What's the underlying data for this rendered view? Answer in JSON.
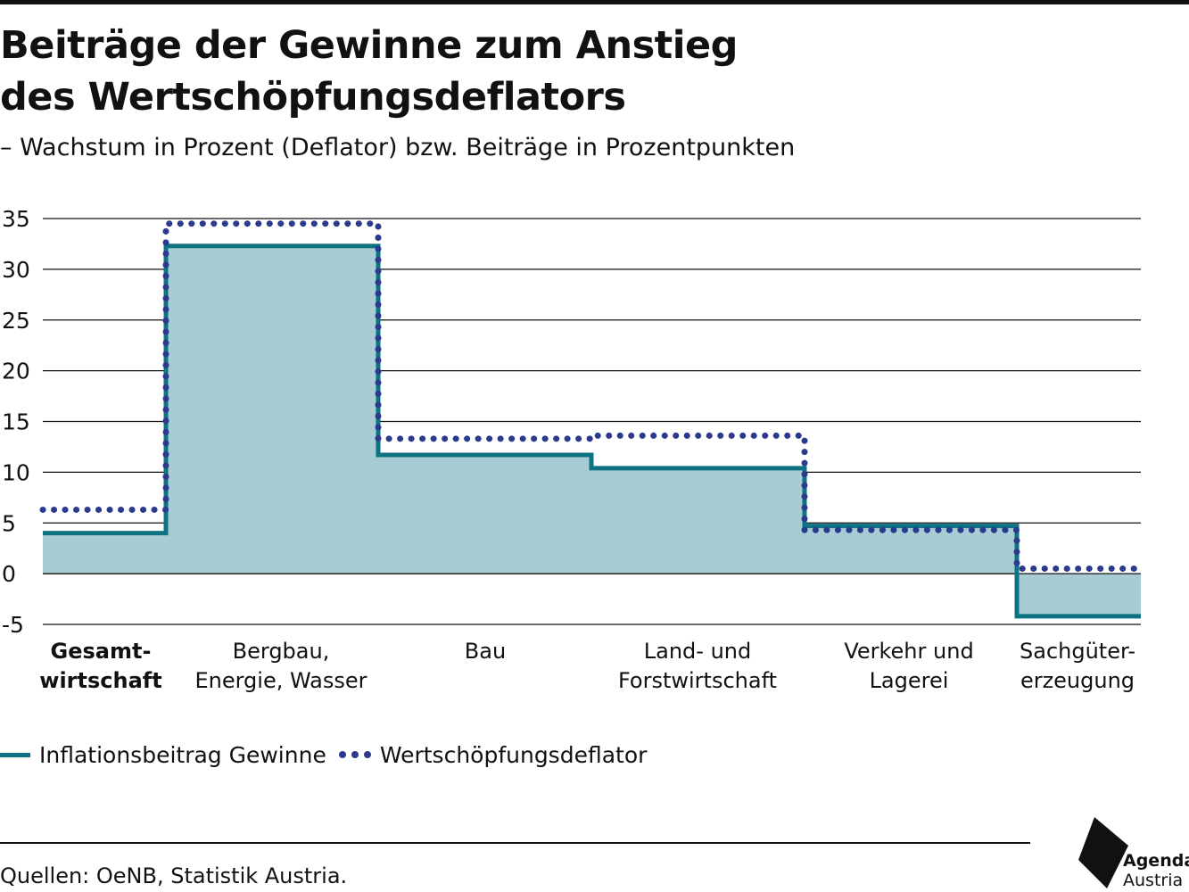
{
  "title": {
    "line1": "Beiträge der Gewinne zum Anstieg",
    "line2": "des Wertschöpfungsdeflators"
  },
  "subtitle": "– Wachstum in Prozent (Deflator) bzw. Beiträge in Prozentpunkten",
  "colors": {
    "profit_line": "#0d7382",
    "profit_fill": "#a8ccd4",
    "deflator": "#2b3a8c",
    "grid": "#111111"
  },
  "chart_data": {
    "type": "line",
    "step": true,
    "y_ticks": [
      "35",
      "30",
      "25",
      "20",
      "15",
      "10",
      "5",
      "0",
      "-5"
    ],
    "ylim": [
      -5,
      35
    ],
    "grid": true,
    "categories": [
      {
        "lines": [
          "Gesamt-",
          "wirtschaft"
        ],
        "bold": true
      },
      {
        "lines": [
          "Bergbau,",
          "Energie, Wasser"
        ],
        "bold": false
      },
      {
        "lines": [
          "Bau"
        ],
        "bold": false
      },
      {
        "lines": [
          "Land- und",
          "Forstwirtschaft"
        ],
        "bold": false
      },
      {
        "lines": [
          "Verkehr und",
          "Lagerei"
        ],
        "bold": false
      },
      {
        "lines": [
          "Sachgüter-",
          "erzeugung"
        ],
        "bold": false
      }
    ],
    "series": [
      {
        "name": "Inflationsbeitrag Gewinne",
        "style": "solid-area",
        "values": [
          4.0,
          32.3,
          11.7,
          10.4,
          4.7,
          -4.2
        ]
      },
      {
        "name": "Wertschöpfungsdeflator",
        "style": "dotted",
        "values": [
          6.3,
          34.5,
          13.3,
          13.6,
          4.3,
          0.5
        ]
      }
    ],
    "legend_position": "bottom-left"
  },
  "source": "Quellen: OeNB, Statistik Austria.",
  "logo": {
    "line1": "Agenda",
    "line2": "Austria"
  }
}
